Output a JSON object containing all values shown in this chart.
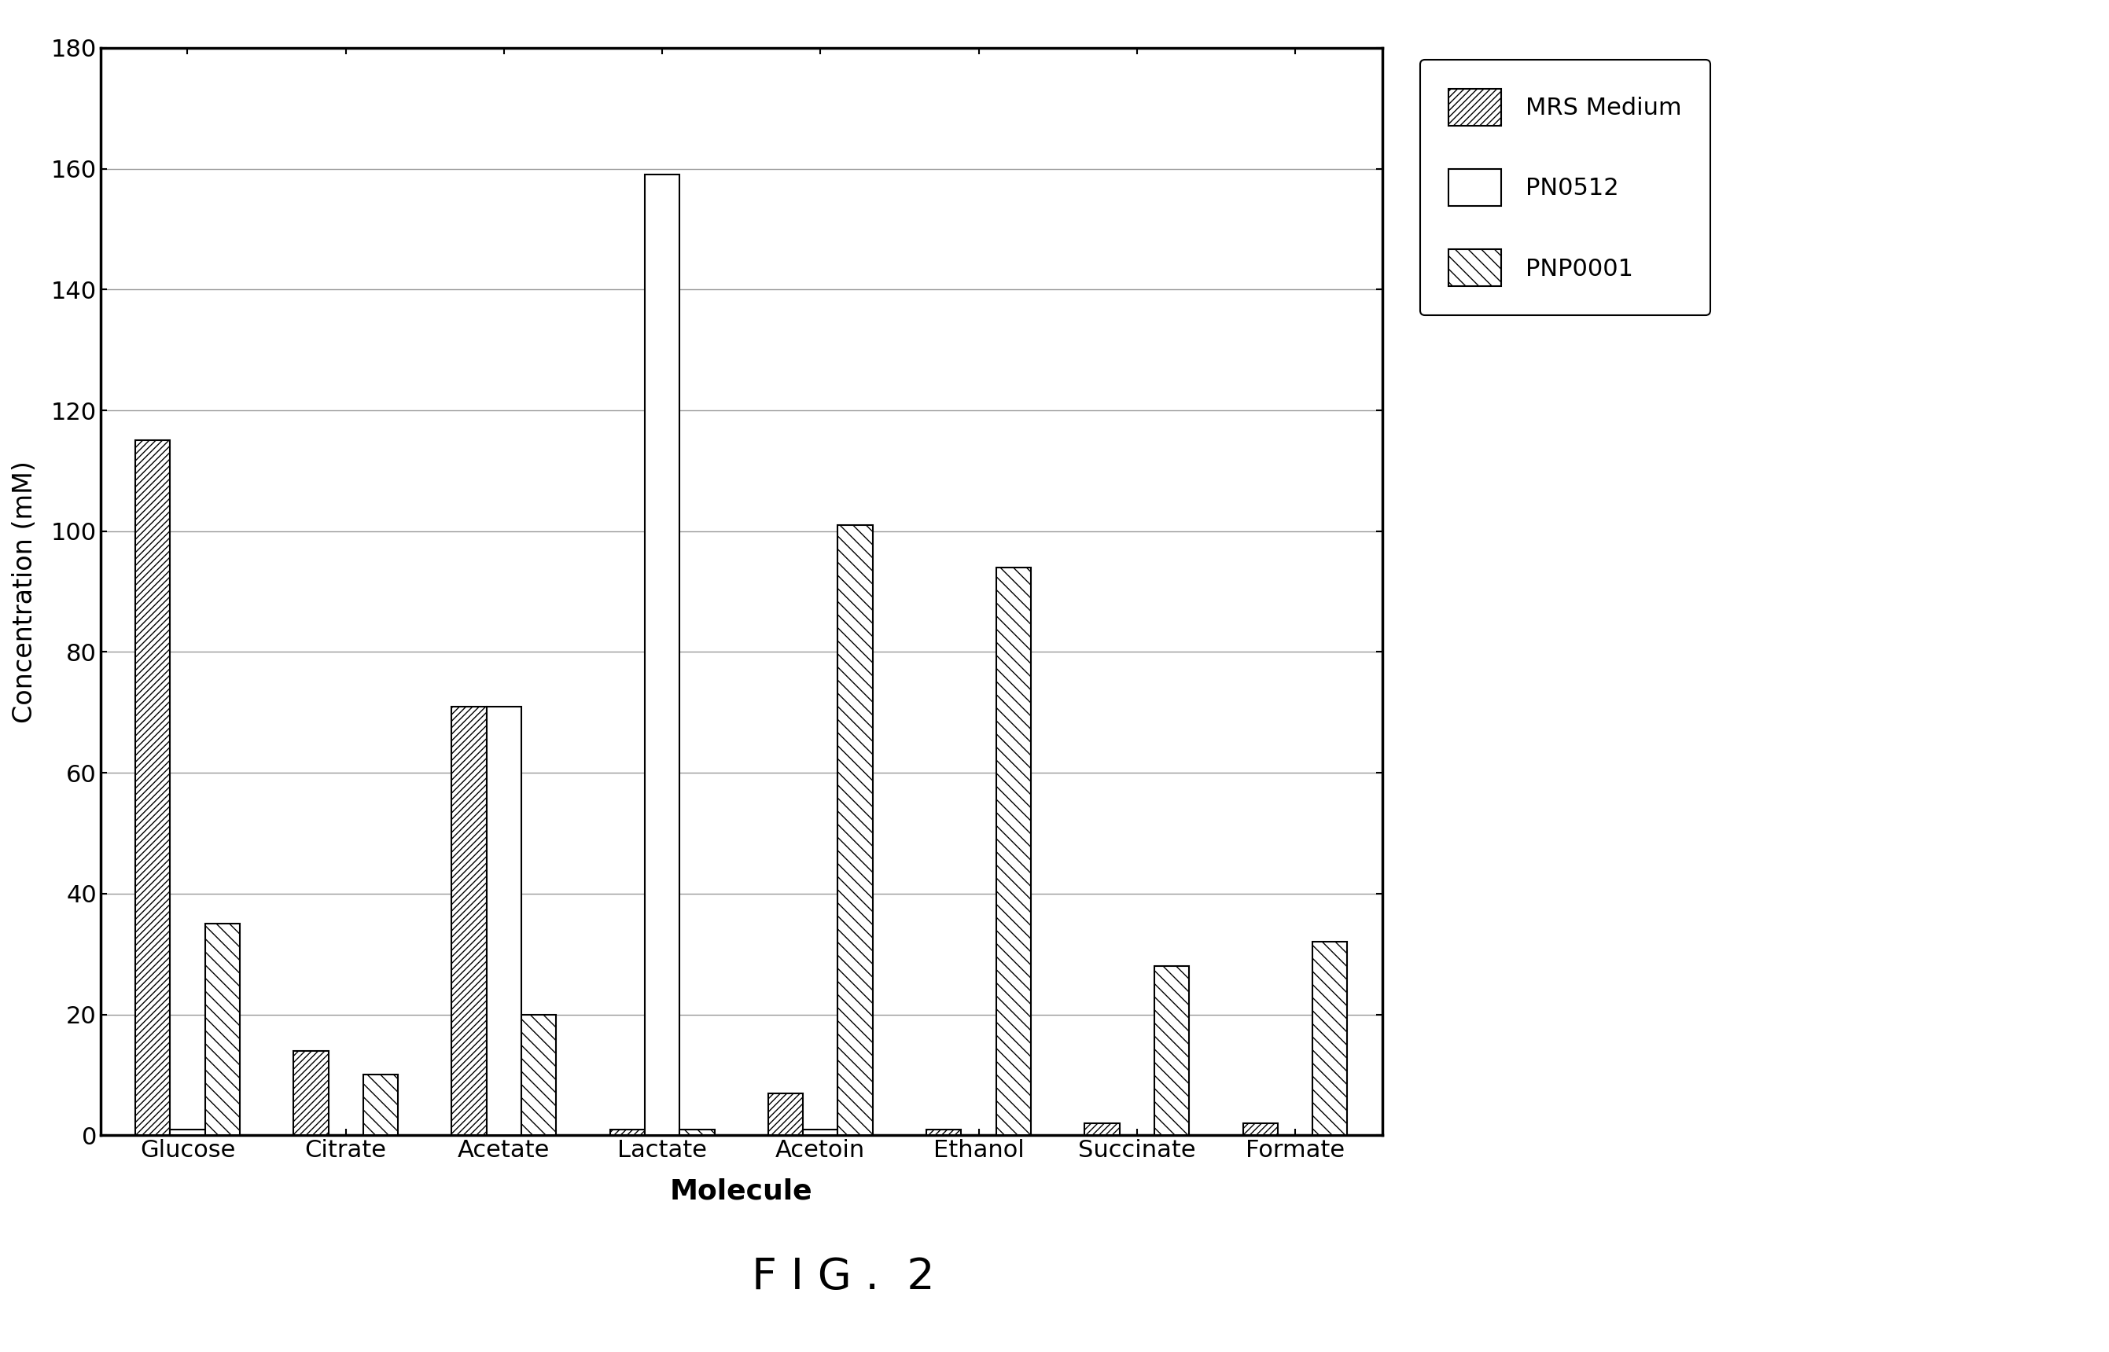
{
  "categories": [
    "Glucose",
    "Citrate",
    "Acetate",
    "Lactate",
    "Acetoin",
    "Ethanol",
    "Succinate",
    "Formate"
  ],
  "series": {
    "MRS Medium": [
      115,
      14,
      71,
      1,
      7,
      1,
      2,
      2
    ],
    "PN0512": [
      1,
      0,
      71,
      159,
      1,
      0,
      0,
      0
    ],
    "PNP0001": [
      35,
      10,
      20,
      1,
      101,
      94,
      28,
      32
    ]
  },
  "hatch_patterns": {
    "MRS Medium": "////",
    "PN0512": "",
    "PNP0001": "\\\\"
  },
  "facecolors": {
    "MRS Medium": "#ffffff",
    "PN0512": "#ffffff",
    "PNP0001": "#ffffff"
  },
  "edgecolors": {
    "MRS Medium": "#000000",
    "PN0512": "#000000",
    "PNP0001": "#000000"
  },
  "ylabel": "Concentration (mM)",
  "xlabel": "Molecule",
  "ylim": [
    0,
    180
  ],
  "yticks": [
    0,
    20,
    40,
    60,
    80,
    100,
    120,
    140,
    160,
    180
  ],
  "figure_title": "F I G .  2",
  "background_color": "#ffffff",
  "bar_width": 0.22,
  "legend_labels": [
    "MRS Medium",
    "PN0512",
    "PNP0001"
  ],
  "grid_color": "#999999",
  "title_fontsize": 40,
  "ylabel_fontsize": 24,
  "xlabel_fontsize": 26,
  "tick_fontsize": 22,
  "legend_fontsize": 22,
  "spine_linewidth": 2.5,
  "grid_linewidth": 1.0
}
